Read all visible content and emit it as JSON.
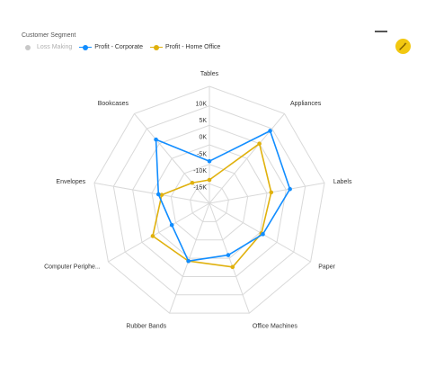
{
  "legend": {
    "title": "Customer Segment",
    "items": [
      {
        "label": "Loss Making",
        "color": "#c8c8c8",
        "active": false
      },
      {
        "label": "Profit - Corporate",
        "color": "#118dff",
        "active": true
      },
      {
        "label": "Profit - Home Office",
        "color": "#e0b10d",
        "active": true
      }
    ]
  },
  "header": {
    "menu_icon": "minus-icon",
    "action_icon": "magic-wand-icon"
  },
  "colors": {
    "grid": "#d9d9d9",
    "corporate": "#118dff",
    "home_office": "#e0b10d",
    "accent": "#f2c811"
  },
  "chart_data": {
    "type": "radar",
    "categories": [
      "Tables",
      "Appliances",
      "Labels",
      "Paper",
      "Office Machines",
      "Rubber Bands",
      "Computer Periphe...",
      "Envelopes",
      "Bookcases"
    ],
    "tick_labels": [
      "10K",
      "5K",
      "0K",
      "-5K",
      "-10K",
      "-15K"
    ],
    "ticks": [
      10000,
      5000,
      0,
      -5000,
      -10000,
      -15000
    ],
    "range": [
      -20000,
      15000
    ],
    "series": [
      {
        "name": "Profit - Corporate",
        "values": [
          -7400,
          8300,
          4500,
          -1500,
          -3500,
          -1600,
          -7000,
          -4500,
          4900
        ]
      },
      {
        "name": "Profit - Home Office",
        "values": [
          -13000,
          3300,
          -1200,
          -2000,
          300,
          -1600,
          -400,
          -5500,
          -12000
        ]
      }
    ]
  }
}
